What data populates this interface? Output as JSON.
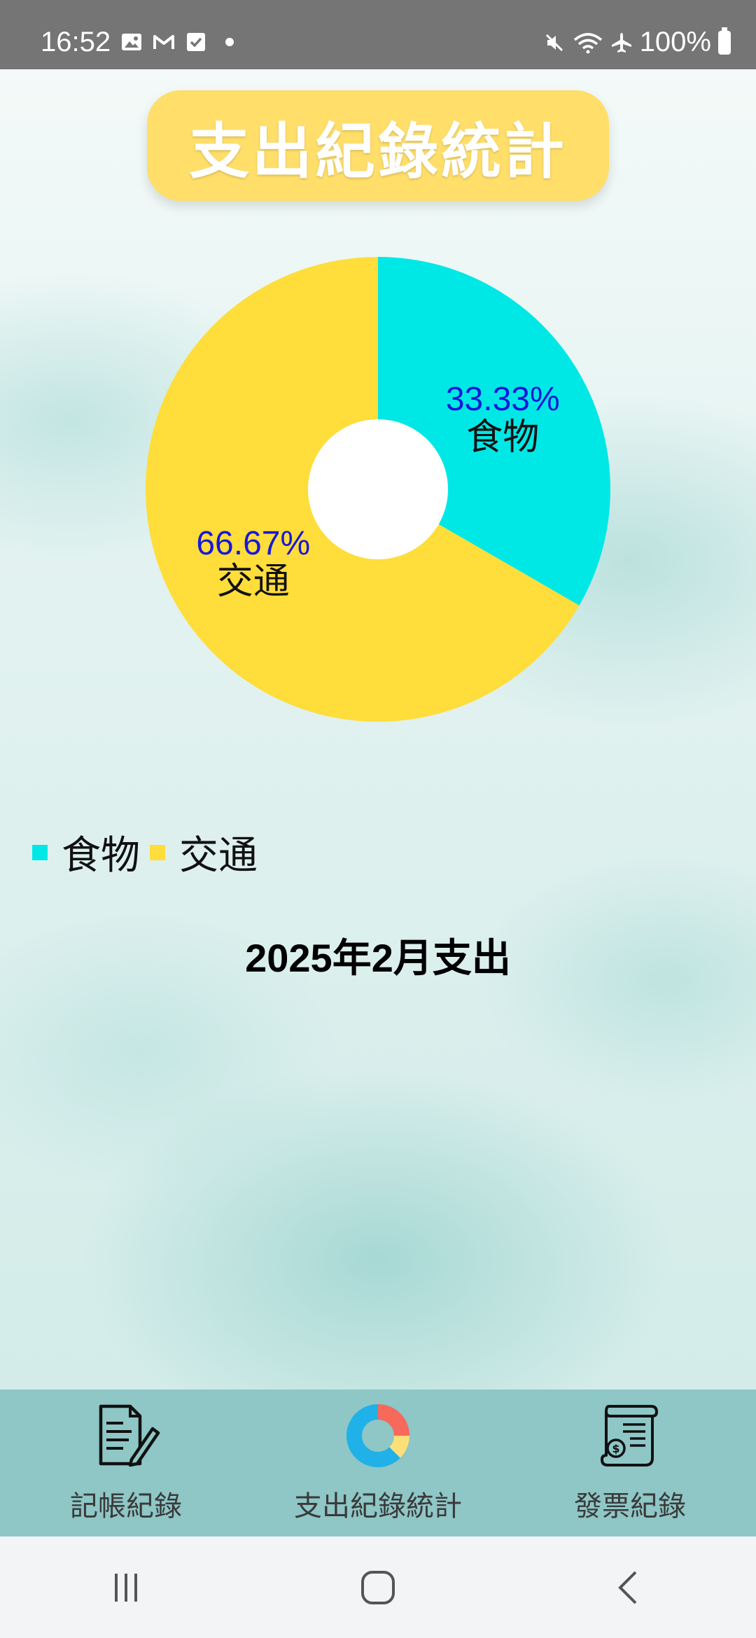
{
  "status_bar": {
    "time": "16:52",
    "battery": "100%",
    "left_icons": [
      "gallery-icon",
      "gmail-icon",
      "checkbox-icon",
      "dot"
    ],
    "right_icons": [
      "mute-icon",
      "wifi-icon",
      "airplane-icon",
      "battery-icon"
    ]
  },
  "header": {
    "title": "支出紀錄統計"
  },
  "chart_data": {
    "type": "pie",
    "donut": true,
    "slices": [
      {
        "label": "食物",
        "percent_label": "33.33%",
        "value": 33.33,
        "color": "#00e8e6"
      },
      {
        "label": "交通",
        "percent_label": "66.67%",
        "value": 66.67,
        "color": "#ffdd3a"
      }
    ],
    "legend": [
      "食物",
      "交通"
    ],
    "legend_position": "bottom-left",
    "value_label_color": "#1818d8"
  },
  "summary": {
    "month_label": "2025年2月支出"
  },
  "bottom_nav": {
    "items": [
      {
        "label": "記帳紀錄",
        "icon": "document-edit-icon"
      },
      {
        "label": "支出紀錄統計",
        "icon": "donut-chart-icon",
        "active": true
      },
      {
        "label": "發票紀錄",
        "icon": "receipt-icon"
      }
    ]
  },
  "system_nav": {
    "buttons": [
      "recents-icon",
      "home-icon",
      "back-icon"
    ]
  }
}
